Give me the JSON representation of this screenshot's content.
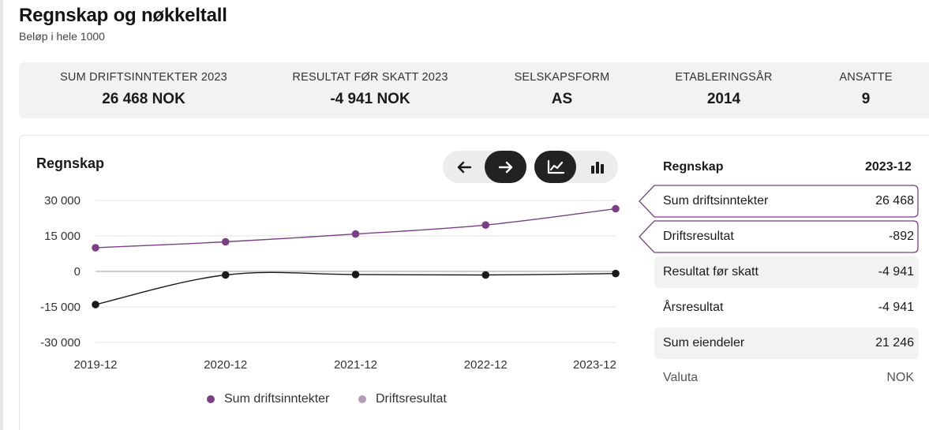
{
  "header": {
    "title": "Regnskap og nøkkeltall",
    "subtitle": "Beløp i hele 1000"
  },
  "kpis": [
    {
      "label": "SUM DRIFTSINNTEKTER 2023",
      "value": "26 468 NOK"
    },
    {
      "label": "RESULTAT FØR SKATT 2023",
      "value": "-4 941 NOK"
    },
    {
      "label": "SELSKAPSFORM",
      "value": "AS"
    },
    {
      "label": "ETABLERINGSÅR",
      "value": "2014"
    },
    {
      "label": "ANSATTE",
      "value": "9"
    }
  ],
  "card": {
    "title": "Regnskap",
    "controls": {
      "nav": [
        {
          "icon": "arrow-left-icon",
          "active": false
        },
        {
          "icon": "arrow-right-icon",
          "active": true
        }
      ],
      "view": [
        {
          "icon": "line-chart-icon",
          "active": true
        },
        {
          "icon": "bar-chart-icon",
          "active": false
        }
      ]
    }
  },
  "side_panel": {
    "header_label": "Regnskap",
    "header_period": "2023-12",
    "rows": [
      {
        "label": "Sum driftsinntekter",
        "value": "26 468",
        "selected": true,
        "shaded": false
      },
      {
        "label": "Driftsresultat",
        "value": "-892",
        "selected": true,
        "shaded": false
      },
      {
        "label": "Resultat før skatt",
        "value": "-4 941",
        "selected": false,
        "shaded": true
      },
      {
        "label": "Årsresultat",
        "value": "-4 941",
        "selected": false,
        "shaded": false
      },
      {
        "label": "Sum eiendeler",
        "value": "21 246",
        "selected": false,
        "shaded": true
      },
      {
        "label": "Valuta",
        "value": "NOK",
        "selected": false,
        "shaded": false,
        "muted": true
      }
    ]
  },
  "colors": {
    "series_primary": "#7b3f85",
    "series_secondary": "#1a1a1a",
    "legend_secondary": "#b79bbd",
    "active_button": "#222222",
    "panel_bg": "#f2f2f2",
    "selected_outline": "#7b3f85"
  },
  "chart_data": {
    "type": "line",
    "categories": [
      "2019-12",
      "2020-12",
      "2021-12",
      "2022-12",
      "2023-12"
    ],
    "series": [
      {
        "name": "Sum driftsinntekter",
        "values": [
          10000,
          12500,
          15800,
          19600,
          26468
        ]
      },
      {
        "name": "Driftsresultat",
        "values": [
          -14000,
          -1500,
          -1300,
          -1500,
          -892
        ]
      }
    ],
    "yticks": [
      "30 000",
      "15 000",
      "0",
      "-15 000",
      "-30 000"
    ],
    "ylim": [
      -30000,
      30000
    ],
    "grid": true,
    "legend_position": "bottom"
  }
}
